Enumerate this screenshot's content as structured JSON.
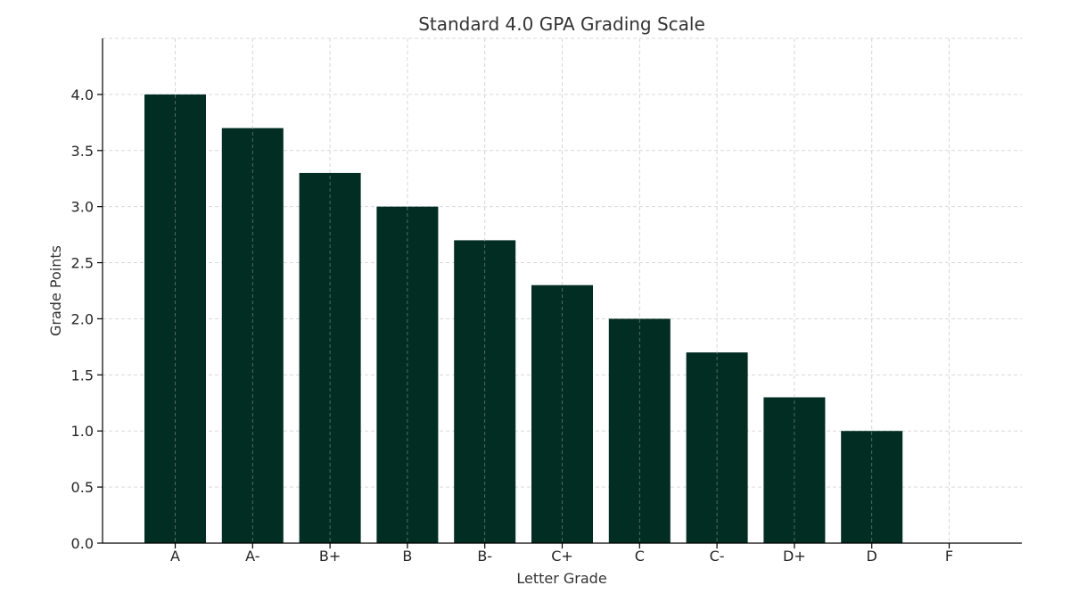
{
  "chart_data": {
    "type": "bar",
    "title": "Standard 4.0 GPA Grading Scale",
    "xlabel": "Letter Grade",
    "ylabel": "Grade Points",
    "categories": [
      "A",
      "A-",
      "B+",
      "B",
      "B-",
      "C+",
      "C",
      "C-",
      "D+",
      "D",
      "F"
    ],
    "values": [
      4.0,
      3.7,
      3.3,
      3.0,
      2.7,
      2.3,
      2.0,
      1.7,
      1.3,
      1.0,
      0.0
    ],
    "ylim": [
      0,
      4.5
    ],
    "yticks": [
      "0.0",
      "0.5",
      "1.0",
      "1.5",
      "2.0",
      "2.5",
      "3.0",
      "3.5",
      "4.0"
    ],
    "grid": true,
    "bar_color": "#022d22"
  }
}
